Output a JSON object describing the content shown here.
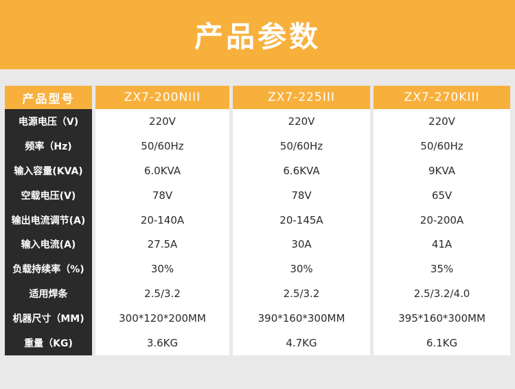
{
  "title": "产品参数",
  "header": {
    "label": "产品型号",
    "models": [
      "ZX7-200NIII",
      "ZX7-225III",
      "ZX7-270KIII"
    ]
  },
  "rows": [
    {
      "label": "电源电压（V)",
      "values": [
        "220V",
        "220V",
        "220V"
      ]
    },
    {
      "label": "频率（Hz)",
      "values": [
        "50/60Hz",
        "50/60Hz",
        "50/60Hz"
      ]
    },
    {
      "label": "输入容量(KVA)",
      "values": [
        "6.0KVA",
        "6.6KVA",
        "9KVA"
      ]
    },
    {
      "label": "空载电压(V)",
      "values": [
        "78V",
        "78V",
        "65V"
      ]
    },
    {
      "label": "输出电流调节(A)",
      "values": [
        "20-140A",
        "20-145A",
        "20-200A"
      ]
    },
    {
      "label": "输入电流(A)",
      "values": [
        "27.5A",
        "30A",
        "41A"
      ]
    },
    {
      "label": "负载持续率（%)",
      "values": [
        "30%",
        "30%",
        "35%"
      ]
    },
    {
      "label": "适用焊条",
      "values": [
        "2.5/3.2",
        "2.5/3.2",
        "2.5/3.2/4.0"
      ]
    },
    {
      "label": "机器尺寸（MM)",
      "values": [
        "300*120*200MM",
        "390*160*300MM",
        "395*160*300MM"
      ]
    },
    {
      "label": "重量（KG)",
      "values": [
        "3.6KG",
        "4.7KG",
        "6.1KG"
      ]
    }
  ],
  "colors": {
    "accent": "#f8b03c",
    "label_bg": "#2a2a2a",
    "page_bg": "#e9e9e9"
  }
}
